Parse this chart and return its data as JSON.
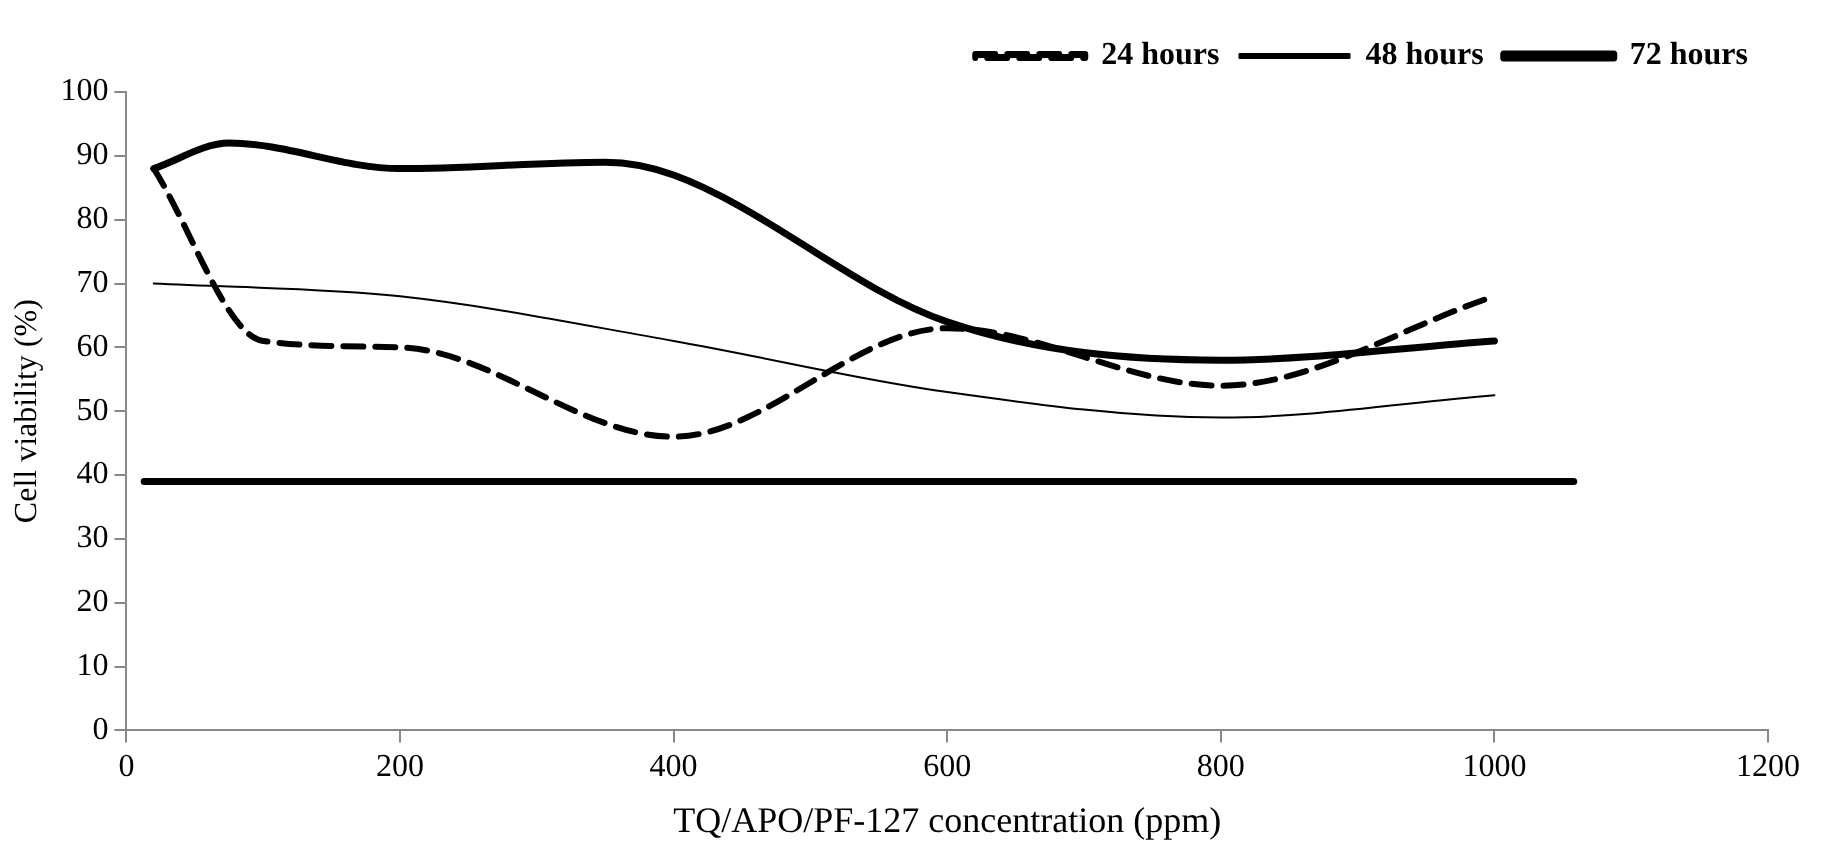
{
  "chart_data": {
    "type": "line",
    "xlabel": "TQ/APO/PF-127 concentration (ppm)",
    "ylabel": "Cell viability (%)",
    "xlim": [
      0,
      1200
    ],
    "xticks": [
      0,
      200,
      400,
      600,
      800,
      1000,
      1200
    ],
    "ylim": [
      0,
      100
    ],
    "yticks": [
      0,
      10,
      20,
      30,
      40,
      50,
      60,
      70,
      80,
      90,
      100
    ],
    "grid": false,
    "legend": "top right",
    "marker": "none",
    "series": [
      {
        "name": "24 hours",
        "color": "#000000",
        "line_style": "dashed",
        "x": [
          20,
          100,
          200,
          400,
          600,
          800,
          1000
        ],
        "values": [
          88,
          61,
          60,
          46,
          63,
          54,
          68
        ]
      },
      {
        "name": "48 hours",
        "color": "#000000",
        "line_style": "solid",
        "x": [
          20,
          200,
          400,
          600,
          800,
          1000
        ],
        "values": [
          70,
          68,
          61,
          53,
          49,
          52.5
        ]
      },
      {
        "name": "72 hours",
        "color": "#000000",
        "line_style": "solid",
        "x": [
          20,
          75,
          200,
          350,
          400,
          600,
          800,
          1000
        ],
        "values": [
          88,
          92,
          88,
          89,
          87,
          64,
          58,
          61
        ]
      },
      {
        "color": "#000000",
        "line_style": "solid",
        "x": [
          13,
          1058
        ],
        "values": [
          39,
          39
        ]
      }
    ]
  }
}
